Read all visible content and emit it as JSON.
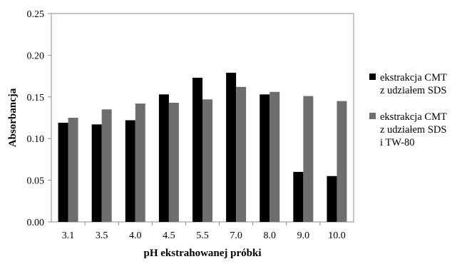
{
  "chart_data": {
    "type": "bar",
    "title": "",
    "xlabel": "pH ekstrahowanej próbki",
    "ylabel": "Absorbancja",
    "ylim": [
      0,
      0.25
    ],
    "yticks": [
      "0.00",
      "0.05",
      "0.10",
      "0.15",
      "0.20",
      "0.25"
    ],
    "grid": false,
    "legend_position": "right",
    "categories": [
      "3.1",
      "3.5",
      "4.0",
      "4.5",
      "5.5",
      "7.0",
      "8.0",
      "9.0",
      "10.0"
    ],
    "series": [
      {
        "name_lines": [
          "ekstrakcja CMT",
          "z udziałem SDS"
        ],
        "color": "#000000",
        "values": [
          0.119,
          0.117,
          0.122,
          0.153,
          0.173,
          0.179,
          0.153,
          0.06,
          0.055
        ]
      },
      {
        "name_lines": [
          "ekstrakcja CMT",
          "z udziałem SDS",
          "i TW-80"
        ],
        "color": "#6e6e6e",
        "values": [
          0.125,
          0.135,
          0.142,
          0.143,
          0.147,
          0.162,
          0.156,
          0.151,
          0.145
        ]
      }
    ]
  }
}
